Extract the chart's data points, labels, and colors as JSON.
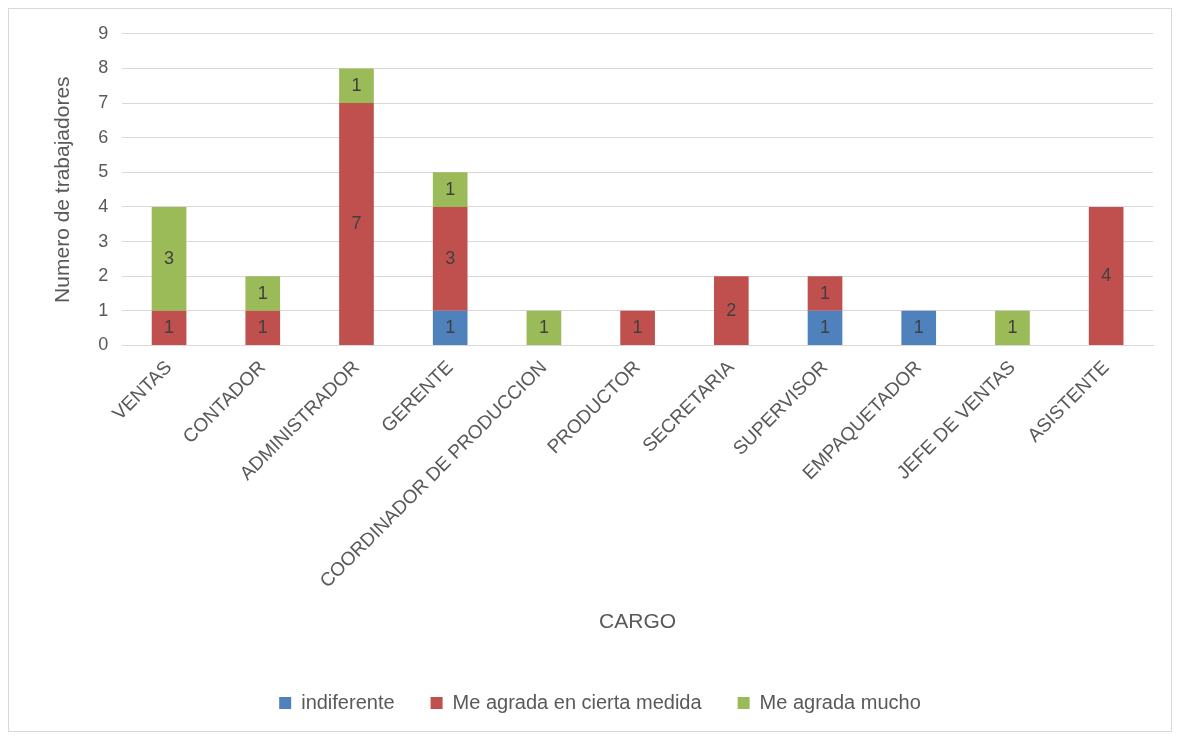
{
  "chart_data": {
    "type": "bar",
    "stacked": true,
    "categories": [
      "VENTAS",
      "CONTADOR",
      "ADMINISTRADOR",
      "GERENTE",
      "COORDINADOR DE PRODUCCION",
      "PRODUCTOR",
      "SECRETARIA",
      "SUPERVISOR",
      "EMPAQUETADOR",
      "JEFE DE VENTAS",
      "ASISTENTE"
    ],
    "series": [
      {
        "name": "indiferente",
        "color": "#4f81bd",
        "values": [
          null,
          null,
          null,
          1,
          null,
          null,
          null,
          1,
          1,
          null,
          null
        ]
      },
      {
        "name": "Me agrada en cierta medida",
        "color": "#c0504d",
        "values": [
          1,
          1,
          7,
          3,
          null,
          1,
          2,
          1,
          null,
          null,
          4
        ]
      },
      {
        "name": "Me agrada mucho",
        "color": "#9bbb59",
        "values": [
          3,
          1,
          1,
          1,
          1,
          null,
          null,
          null,
          null,
          1,
          null
        ]
      }
    ],
    "xlabel": "CARGO",
    "ylabel": "Numero de trabajadores",
    "ylim": [
      0,
      9
    ],
    "yticks": [
      0,
      1,
      2,
      3,
      4,
      5,
      6,
      7,
      8,
      9
    ],
    "grid": "y",
    "legend": "bottom",
    "data_labels": true
  }
}
